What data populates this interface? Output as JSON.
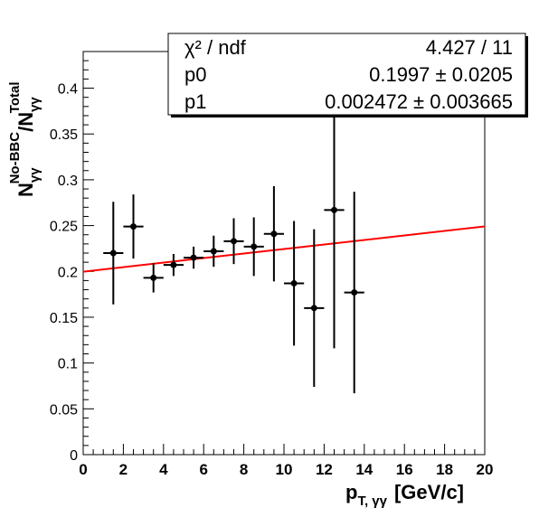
{
  "chart_data": {
    "type": "scatter",
    "xlabel_main": "p",
    "xlabel_sub": "T, γγ",
    "xlabel_unit": "[GeV/c]",
    "ylabel": {
      "num_main": "N",
      "num_sub": "γγ",
      "num_sup": "No-BBC",
      "slash": "/",
      "den_main": "N",
      "den_sub": "γγ",
      "den_sup": "Total"
    },
    "xlim": [
      0,
      20
    ],
    "ylim": [
      0,
      0.44
    ],
    "x_ticks": [
      "0",
      "2",
      "4",
      "6",
      "8",
      "10",
      "12",
      "14",
      "16",
      "18",
      "20"
    ],
    "y_ticks": [
      "0",
      "0.05",
      "0.1",
      "0.15",
      "0.2",
      "0.25",
      "0.3",
      "0.35",
      "0.4"
    ],
    "series": [
      {
        "x": [
          1.5,
          2.5,
          3.5,
          4.5,
          5.5,
          6.5,
          7.5,
          8.5,
          9.5,
          10.5,
          11.5,
          12.5,
          13.5
        ],
        "y": [
          0.22,
          0.249,
          0.193,
          0.207,
          0.215,
          0.222,
          0.233,
          0.227,
          0.241,
          0.187,
          0.16,
          0.267,
          0.177
        ],
        "xerr": [
          0.5,
          0.5,
          0.5,
          0.5,
          0.5,
          0.5,
          0.5,
          0.5,
          0.5,
          0.5,
          0.5,
          0.5,
          0.5
        ],
        "yerr": [
          0.056,
          0.035,
          0.016,
          0.012,
          0.012,
          0.017,
          0.025,
          0.032,
          0.052,
          0.068,
          0.086,
          0.151,
          0.11
        ]
      }
    ],
    "fit": {
      "p0": 0.1997,
      "p1": 0.002472,
      "color": "#ff0000"
    },
    "stats_box": {
      "rows": [
        {
          "name": "χ² / ndf",
          "value": "4.427 / 11"
        },
        {
          "name": "p0",
          "value": "0.1997 ± 0.0205"
        },
        {
          "name": "p1",
          "value": "0.002472 ± 0.003665"
        }
      ]
    }
  }
}
